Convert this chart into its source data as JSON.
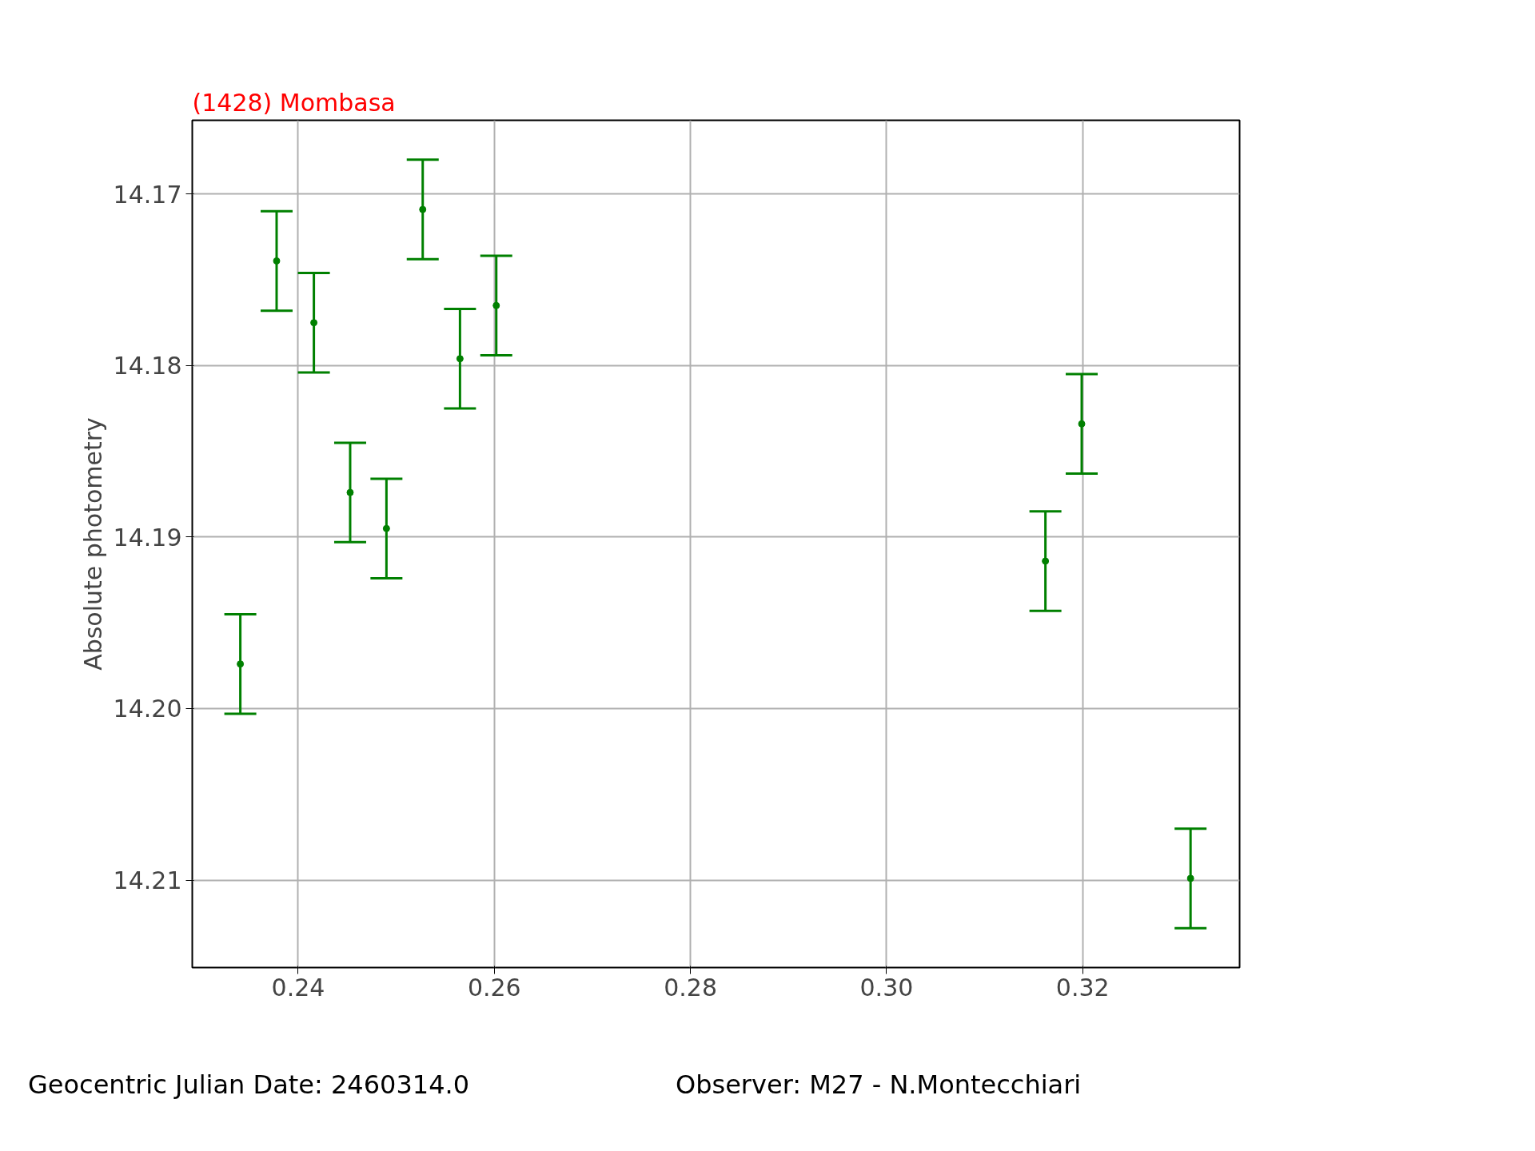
{
  "chart_data": {
    "type": "scatter",
    "title": "(1428) Mombasa",
    "ylabel": "Absolute photometry",
    "x": [
      0.2341,
      0.2378,
      0.2416,
      0.2453,
      0.249,
      0.2527,
      0.2565,
      0.2602,
      0.3162,
      0.3199,
      0.331
    ],
    "values": [
      14.1974,
      14.1739,
      14.1775,
      14.1874,
      14.1895,
      14.1709,
      14.1796,
      14.1765,
      14.1914,
      14.1834,
      14.2099
    ],
    "errors": [
      0.0029,
      0.0029,
      0.0029,
      0.0029,
      0.0029,
      0.0029,
      0.0029,
      0.0029,
      0.0029,
      0.0029,
      0.0029
    ],
    "color": "#008000",
    "marker": "circle",
    "xlim": [
      0.2292,
      0.336
    ],
    "ylim": [
      14.2151,
      14.1657
    ],
    "xticks": [
      0.24,
      0.26,
      0.28,
      {
        "value": 0.3,
        "label": "0.30"
      },
      0.32
    ],
    "yticks": [
      14.17,
      14.18,
      14.19,
      {
        "value": 14.2,
        "label": "14.20"
      },
      14.21
    ],
    "grid": true,
    "annotations": [
      "Geocentric Julian Date: 2460314.0",
      "Observer: M27 - N.Montecchiari"
    ]
  }
}
